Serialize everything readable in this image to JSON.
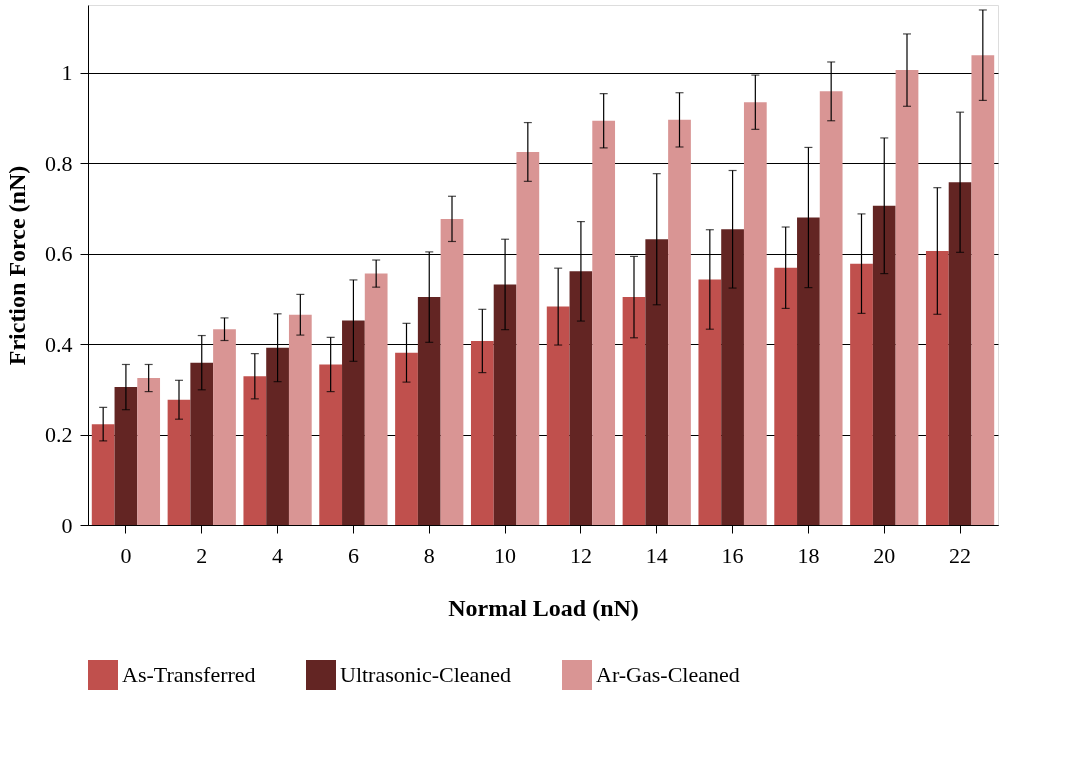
{
  "chart_data": {
    "type": "bar",
    "xlabel": "Normal Load (nN)",
    "ylabel": "Friction Force (nN)",
    "categories": [
      "0",
      "2",
      "4",
      "6",
      "8",
      "10",
      "12",
      "14",
      "16",
      "18",
      "20",
      "22"
    ],
    "series": [
      {
        "name": "As-Transferred",
        "color": "#c0504d",
        "values": [
          0.223,
          0.277,
          0.329,
          0.355,
          0.381,
          0.407,
          0.483,
          0.504,
          0.543,
          0.569,
          0.578,
          0.606
        ],
        "errors": [
          0.037,
          0.043,
          0.05,
          0.06,
          0.065,
          0.07,
          0.085,
          0.09,
          0.11,
          0.09,
          0.11,
          0.14
        ]
      },
      {
        "name": "Ultrasonic-Cleaned",
        "color": "#632523",
        "values": [
          0.305,
          0.359,
          0.392,
          0.452,
          0.504,
          0.532,
          0.561,
          0.632,
          0.654,
          0.68,
          0.706,
          0.758
        ],
        "errors": [
          0.05,
          0.06,
          0.075,
          0.09,
          0.1,
          0.1,
          0.11,
          0.145,
          0.13,
          0.155,
          0.15,
          0.155
        ]
      },
      {
        "name": "Ar-Gas-Cleaned",
        "color": "#d99594",
        "values": [
          0.325,
          0.433,
          0.465,
          0.556,
          0.677,
          0.825,
          0.894,
          0.896,
          0.935,
          0.959,
          1.006,
          1.039
        ],
        "errors": [
          0.03,
          0.025,
          0.045,
          0.03,
          0.05,
          0.065,
          0.06,
          0.06,
          0.06,
          0.065,
          0.08,
          0.1
        ]
      }
    ],
    "ylim": [
      0,
      1.15
    ],
    "yticks": [
      0,
      0.2,
      0.4,
      0.6,
      0.8,
      1
    ],
    "grid": "y",
    "legend": "bottom"
  }
}
